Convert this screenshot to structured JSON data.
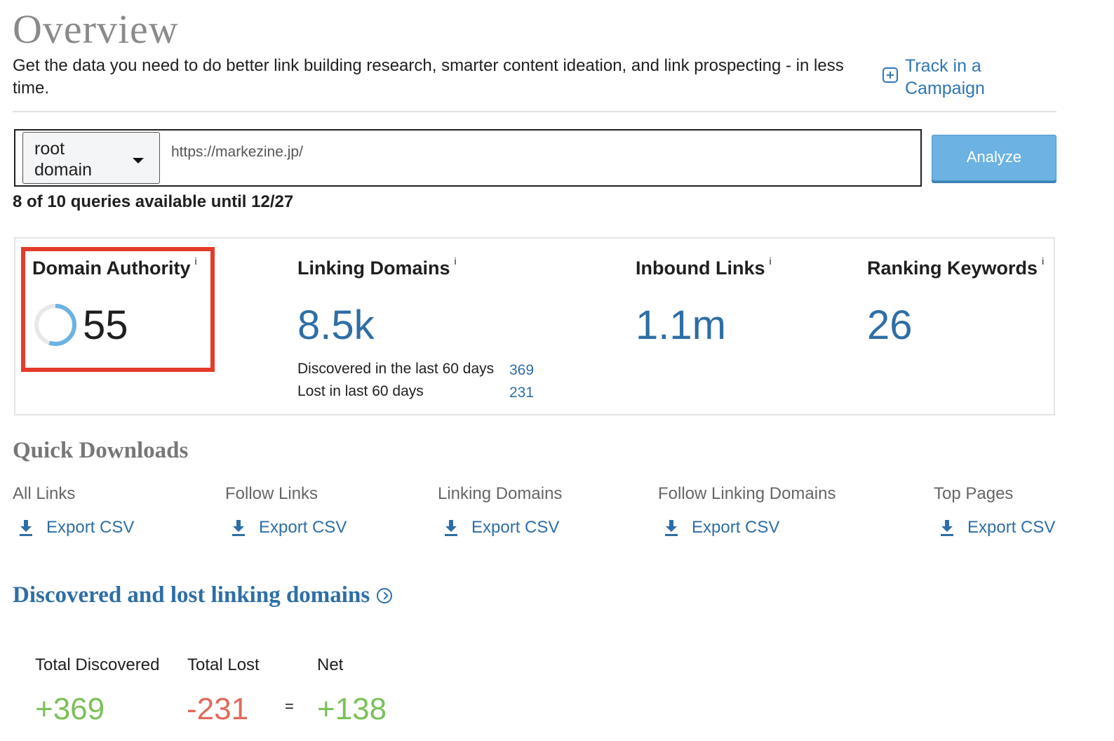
{
  "header": {
    "title": "Overview",
    "subtitle": "Get the data you need to do better link building research, smarter content ideation, and link prospecting - in less time.",
    "track_line1": "Track in a",
    "track_line2": "Campaign"
  },
  "search": {
    "scope_line1": "root",
    "scope_line2": "domain",
    "url_value": "https://markezine.jp/",
    "analyze_label": "Analyze",
    "queries_text": "8 of 10 queries available until 12/27"
  },
  "metrics": {
    "domain_authority": {
      "label": "Domain Authority",
      "info": "i",
      "value": "55",
      "score": 55
    },
    "linking_domains": {
      "label": "Linking Domains",
      "info": "i",
      "value": "8.5k",
      "discovered_label": "Discovered in the last 60 days",
      "discovered_value": "369",
      "lost_label": "Lost in last 60 days",
      "lost_value": "231"
    },
    "inbound_links": {
      "label": "Inbound Links",
      "info": "i",
      "value": "1.1m"
    },
    "ranking_keywords": {
      "label": "Ranking Keywords",
      "info": "i",
      "value": "26"
    }
  },
  "quick_downloads": {
    "title": "Quick Downloads",
    "items": [
      {
        "label": "All Links",
        "link": "Export CSV"
      },
      {
        "label": "Follow Links",
        "link": "Export CSV"
      },
      {
        "label": "Linking Domains",
        "link": "Export CSV"
      },
      {
        "label": "Follow Linking Domains",
        "link": "Export CSV"
      },
      {
        "label": "Top Pages",
        "link": "Export CSV"
      }
    ]
  },
  "discovered_lost": {
    "title": "Discovered and lost linking domains",
    "total_discovered_label": "Total Discovered",
    "total_lost_label": "Total Lost",
    "net_label": "Net",
    "total_discovered": "+369",
    "total_lost": "-231",
    "equals": "=",
    "net": "+138"
  },
  "colors": {
    "accent": "#2e6ea6",
    "button": "#6cb2e3",
    "highlight": "#e43b2a",
    "positive": "#7cc05a",
    "negative": "#e06a5a"
  },
  "icons": [
    "plus-square-icon",
    "caret-down-icon",
    "download-icon",
    "chevron-circle-icon",
    "score-ring-icon"
  ]
}
